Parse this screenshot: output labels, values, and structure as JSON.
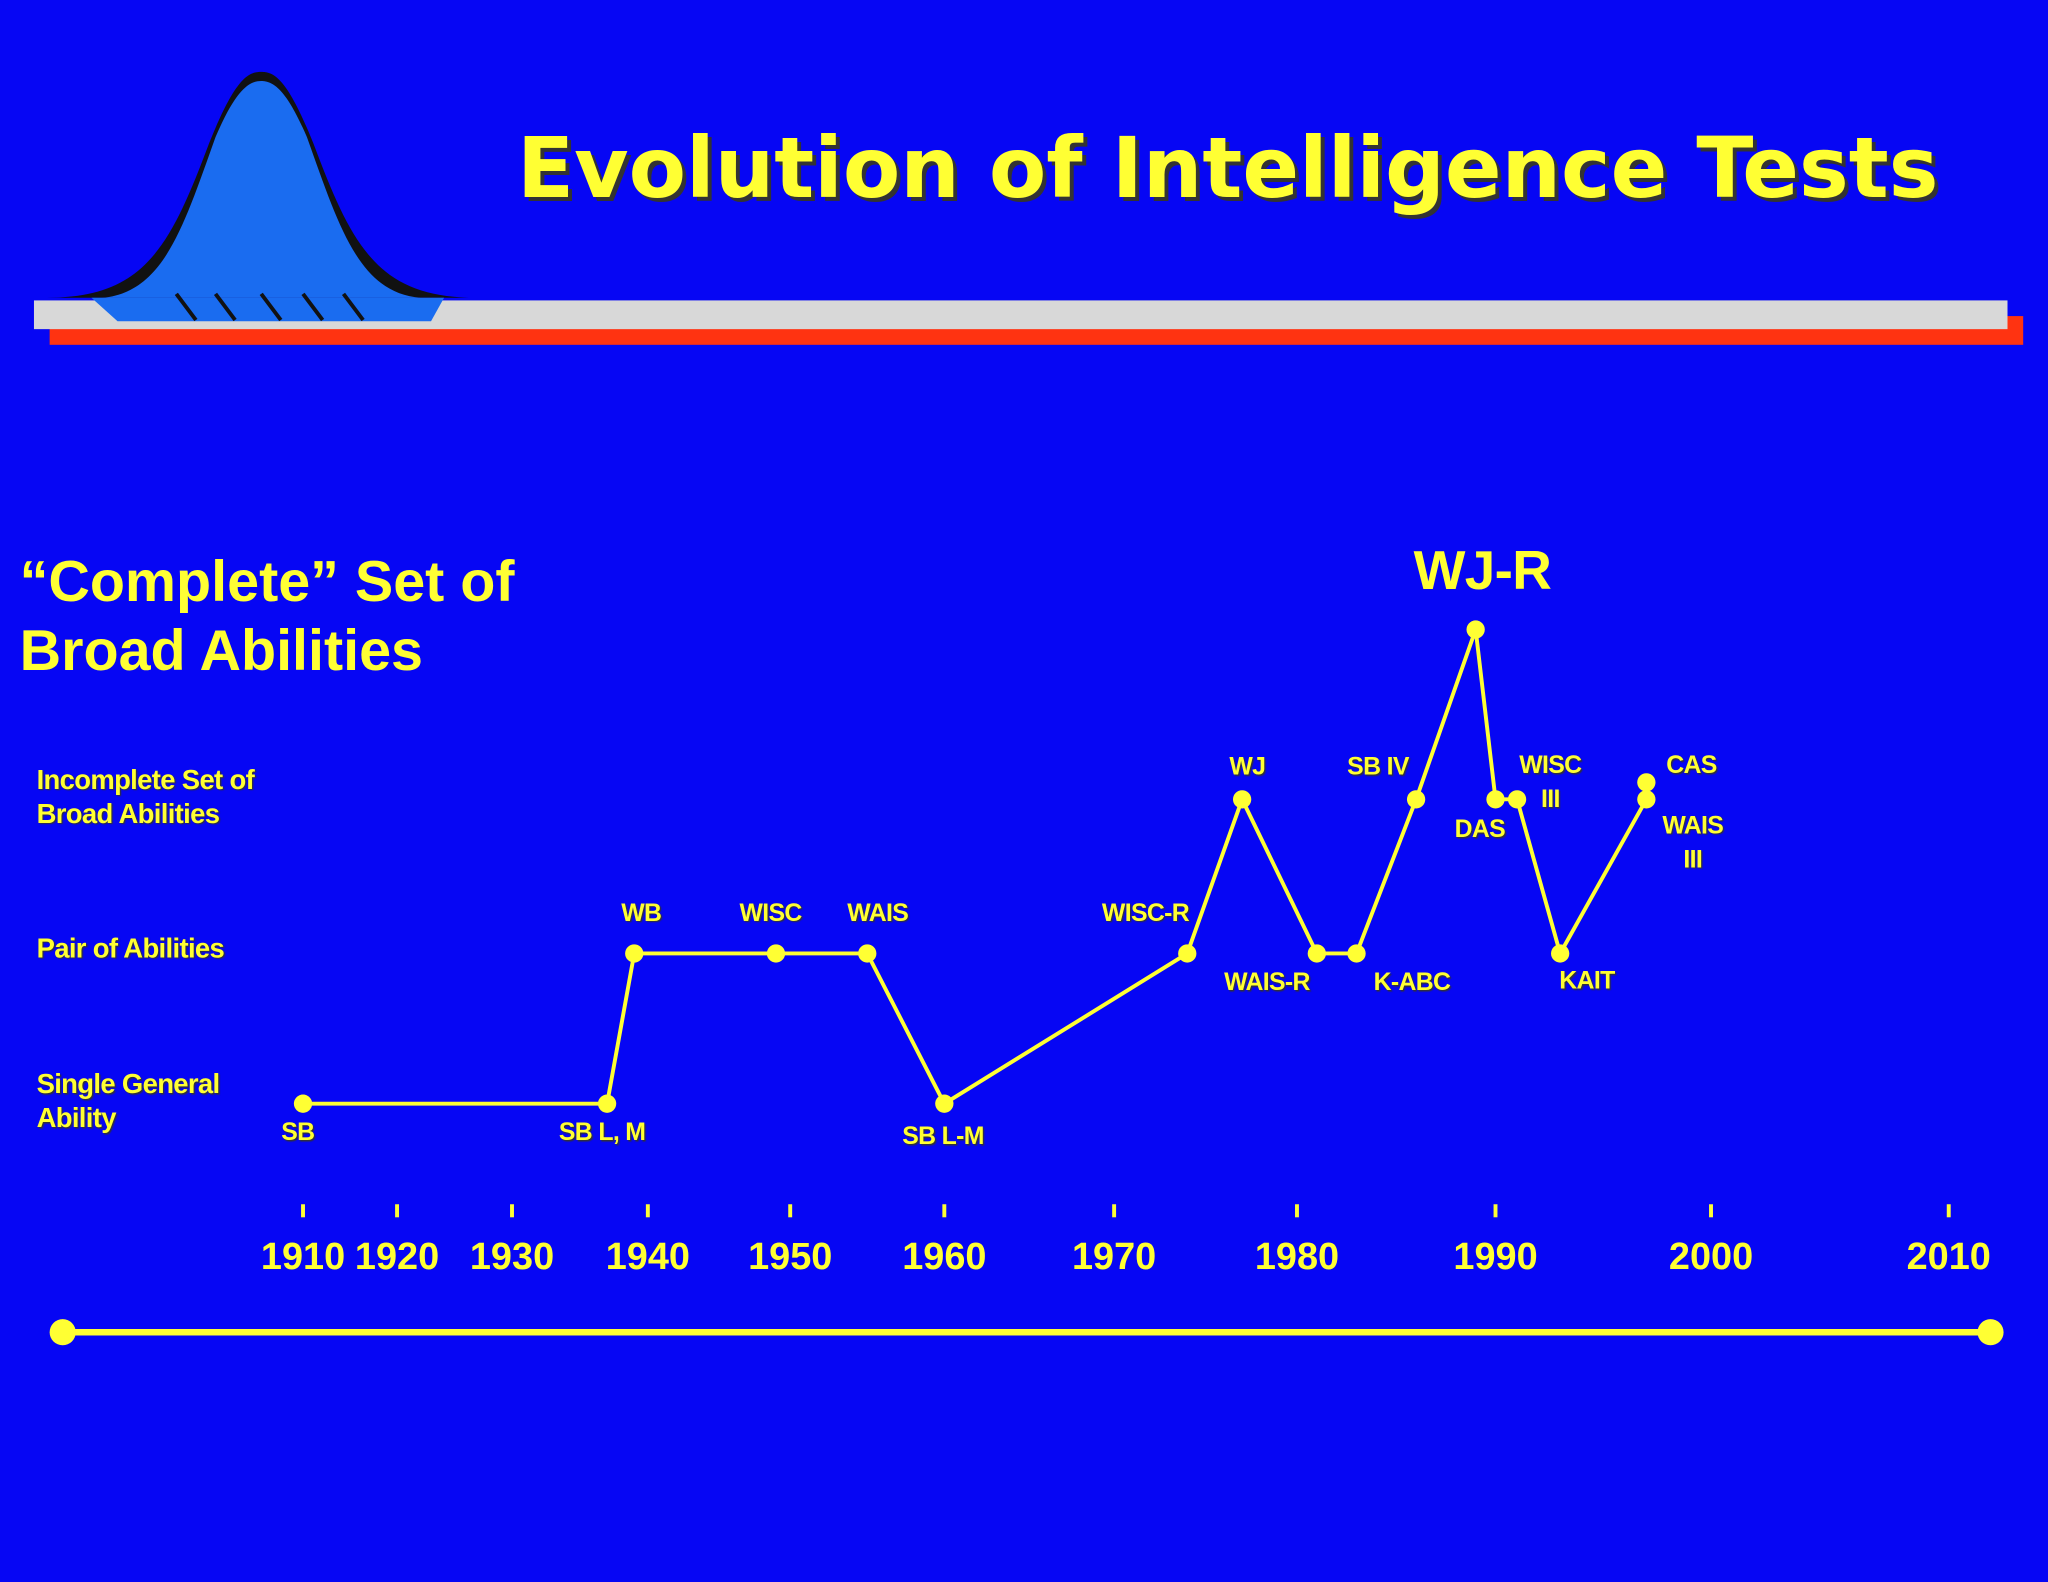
{
  "chart_data": {
    "type": "line",
    "title": "Evolution of Intelligence Tests",
    "x": [
      1910,
      1937,
      1939,
      1949,
      1955,
      1960,
      1974,
      1977,
      1981,
      1983,
      1986,
      1989,
      1990,
      1991,
      1993,
      1997,
      1997
    ],
    "values": [
      1,
      1,
      2,
      2,
      2,
      1,
      2,
      3,
      2,
      2,
      3,
      4,
      3,
      3,
      2,
      3,
      3.1
    ],
    "point_labels": [
      "SB",
      "SB L, M",
      "WB",
      "WISC",
      "WAIS",
      "SB L-M",
      "WISC-R",
      "WJ",
      "WAIS-R",
      "K-ABC",
      "SB IV",
      "WJ-R",
      "DAS",
      "WISC\nIII",
      "KAIT",
      "WAIS\nIII",
      "CAS"
    ],
    "color": "#ffff33",
    "xlim": [
      1910,
      2010
    ],
    "xticks": [
      1910,
      1920,
      1930,
      1940,
      1950,
      1960,
      1970,
      1980,
      1990,
      2000,
      2010
    ],
    "ylim": [
      1,
      4
    ],
    "yticks": [
      {
        "value": 1,
        "label": "Single General\nAbility"
      },
      {
        "value": 2,
        "label": "Pair of Abilities"
      },
      {
        "value": 3,
        "label": "Incomplete Set of\nBroad Abilities"
      },
      {
        "value": 4,
        "label": "“Complete” Set of\nBroad Abilities"
      }
    ]
  }
}
